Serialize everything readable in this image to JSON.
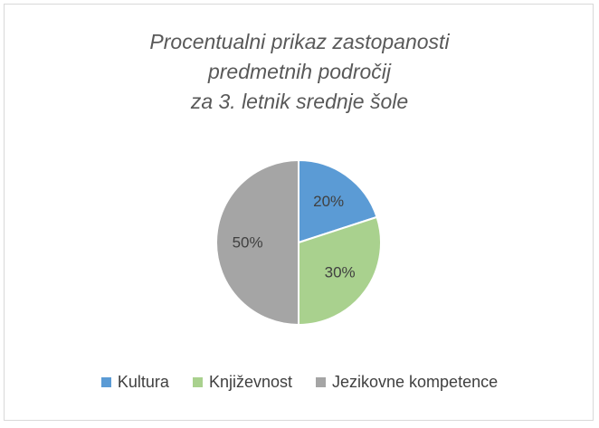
{
  "chart_data": {
    "type": "pie",
    "title_lines": [
      "Procentualni prikaz zastopanosti",
      "predmetnih področij",
      "za 3. letnik srednje šole"
    ],
    "categories": [
      "Kultura",
      "Književnost",
      "Jezikovne kompetence"
    ],
    "values": [
      20,
      30,
      50
    ],
    "data_labels": [
      "20%",
      "30%",
      "50%"
    ],
    "colors": [
      "#5b9bd5",
      "#a9d18e",
      "#a5a5a5"
    ],
    "legend_position": "bottom"
  }
}
